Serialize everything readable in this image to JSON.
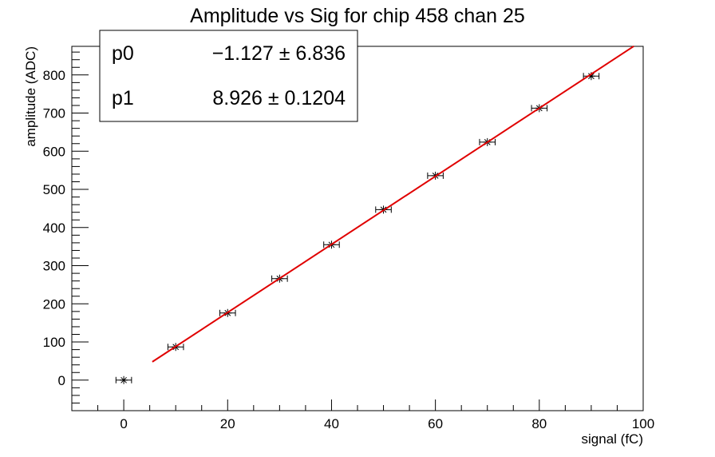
{
  "chart_data": {
    "type": "scatter",
    "title": "Amplitude vs Sig for chip 458 chan 25",
    "xlabel": "signal (fC)",
    "ylabel": "amplitude (ADC)",
    "series": [
      {
        "name": "data",
        "color": "#000000",
        "x": [
          0,
          10,
          20,
          30,
          40,
          50,
          60,
          70,
          80,
          90
        ],
        "values": [
          0,
          87,
          176,
          266,
          355,
          447,
          536,
          624,
          713,
          797
        ],
        "xerr": [
          1.5,
          1.5,
          1.5,
          1.5,
          1.5,
          1.5,
          1.5,
          1.5,
          1.5,
          1.5
        ]
      },
      {
        "name": "fit",
        "color": "#e00000",
        "x": [
          5.5,
          98.2
        ],
        "values": [
          47.97,
          875.4
        ]
      }
    ],
    "stats": [
      {
        "name": "p0",
        "value": "−1.127 ± 6.836"
      },
      {
        "name": "p1",
        "value": "8.926 ± 0.1204"
      }
    ],
    "xlim": [
      -10,
      100
    ],
    "ylim": [
      -80,
      875
    ],
    "xticks": [
      0,
      20,
      40,
      60,
      80,
      100
    ],
    "yticks": [
      0,
      100,
      200,
      300,
      400,
      500,
      600,
      700,
      800
    ],
    "xminorticks": [
      -10,
      -5,
      5,
      10,
      15,
      25,
      30,
      35,
      45,
      50,
      55,
      65,
      70,
      75,
      85,
      90,
      95
    ],
    "yminorticks": [
      -60,
      -40,
      -20,
      20,
      40,
      60,
      80,
      120,
      140,
      160,
      180,
      220,
      240,
      260,
      280,
      320,
      340,
      360,
      380,
      420,
      440,
      460,
      480,
      520,
      540,
      560,
      580,
      620,
      640,
      660,
      680,
      720,
      740,
      760,
      780,
      820,
      840,
      860
    ]
  }
}
